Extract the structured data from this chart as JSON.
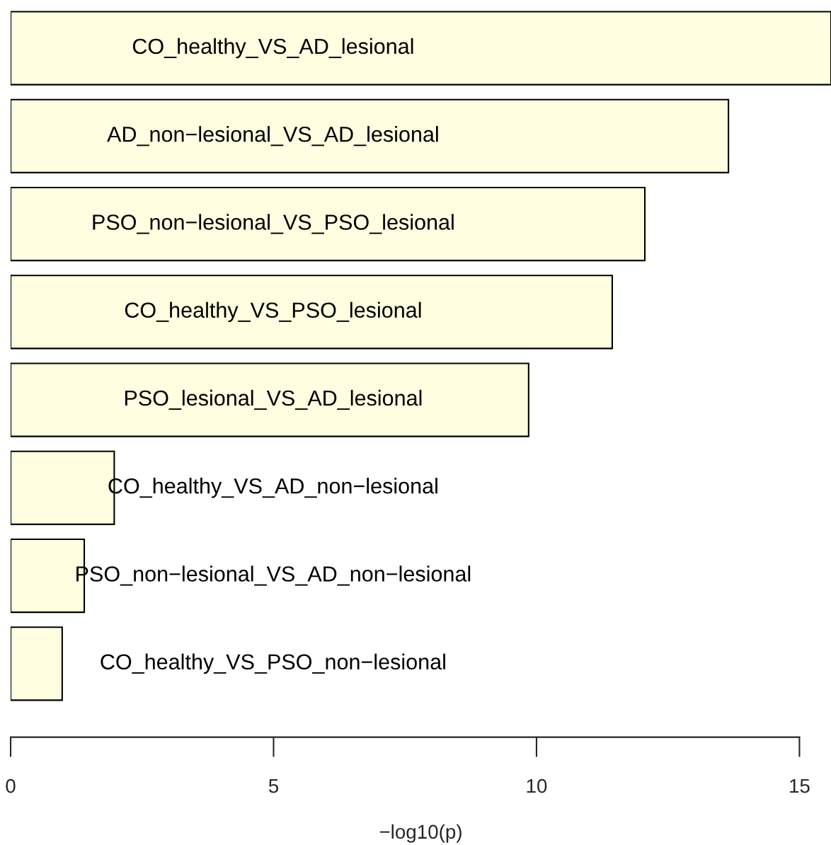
{
  "chart_data": {
    "type": "bar",
    "orientation": "horizontal",
    "xlabel": "−log10(p)",
    "categories": [
      "CO_healthy_VS_AD_lesional",
      "AD_non−lesional_VS_AD_lesional",
      "PSO_non−lesional_VS_PSO_lesional",
      "CO_healthy_VS_PSO_lesional",
      "PSO_lesional_VS_AD_lesional",
      "CO_healthy_VS_AD_non−lesional",
      "PSO_non−lesional_VS_AD_non−lesional",
      "CO_healthy_VS_PSO_non−lesional"
    ],
    "values": [
      15.6,
      13.65,
      12.06,
      11.44,
      9.85,
      1.97,
      1.4,
      0.98
    ],
    "color": "#fffee0",
    "xlim": [
      0,
      15.6
    ],
    "xticks": [
      0,
      5,
      10,
      15
    ],
    "grid": false,
    "tick_labels": "x"
  }
}
